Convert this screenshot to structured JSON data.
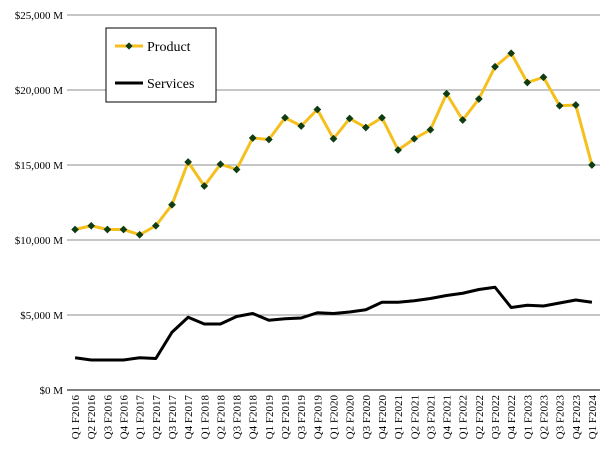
{
  "chart_data": {
    "type": "line",
    "title": "",
    "xlabel": "",
    "ylabel": "",
    "ylim": [
      0,
      25000
    ],
    "yticks": [
      0,
      5000,
      10000,
      15000,
      20000,
      25000
    ],
    "ytick_labels": [
      "$0 M",
      "$5,000 M",
      "$10,000 M",
      "$15,000 M",
      "$20,000 M",
      "$25,000 M"
    ],
    "grid": "horizontal",
    "legend_position": "top-left",
    "categories": [
      "Q1 F2016",
      "Q2 F2016",
      "Q3 F2016",
      "Q4 F2016",
      "Q1 F2017",
      "Q2 F2017",
      "Q3 F2017",
      "Q4 F2017",
      "Q1 F2018",
      "Q2 F2018",
      "Q3 F2018",
      "Q4 F2018",
      "Q1 F2019",
      "Q2 F2019",
      "Q3 F2019",
      "Q4 F2019",
      "Q1 F2020",
      "Q2 F2020",
      "Q3 F2020",
      "Q4 F2020",
      "Q1 F2021",
      "Q2 F2021",
      "Q3 F2021",
      "Q4 F2021",
      "Q1 F2022",
      "Q2 F2022",
      "Q3 F2022",
      "Q4 F2022",
      "Q1 F2023",
      "Q2 F2023",
      "Q3 F2023",
      "Q4 F2023",
      "Q1 F2024"
    ],
    "series": [
      {
        "name": "Product",
        "color": "#f5c01e",
        "marker": "diamond",
        "marker_color": "#0f3d12",
        "values": [
          10700,
          10950,
          10700,
          10700,
          10350,
          10950,
          12350,
          15200,
          13600,
          15050,
          14700,
          16800,
          16700,
          18150,
          17600,
          18700,
          16750,
          18100,
          17500,
          18150,
          16000,
          16750,
          17350,
          19750,
          18000,
          19400,
          21550,
          22450,
          20500,
          20850,
          18950,
          19000,
          15000
        ]
      },
      {
        "name": "Services",
        "color": "#000000",
        "marker": "none",
        "values": [
          2150,
          2000,
          2000,
          2000,
          2150,
          2100,
          3850,
          4850,
          4400,
          4400,
          4900,
          5100,
          4650,
          4750,
          4800,
          5150,
          5100,
          5200,
          5350,
          5850,
          5850,
          5950,
          6100,
          6300,
          6450,
          6700,
          6850,
          5500,
          5650,
          5600,
          5800,
          6000,
          5850
        ]
      }
    ]
  }
}
